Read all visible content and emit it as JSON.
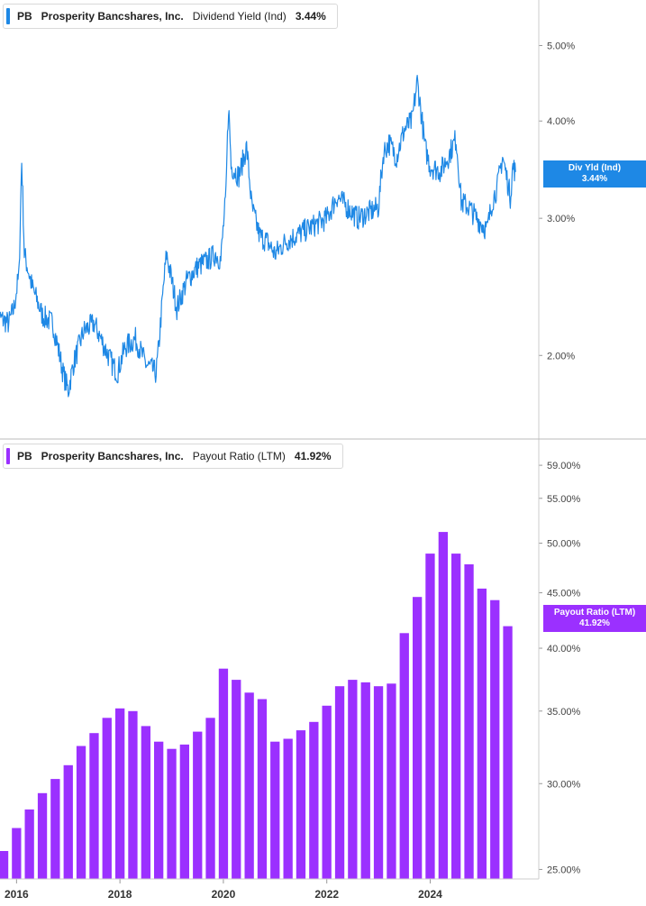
{
  "colors": {
    "dividend_line": "#1e88e5",
    "payout_bar": "#9b30ff",
    "grid": "#e6e6e6",
    "axis": "#cccccc"
  },
  "top_panel": {
    "legend": {
      "ticker": "PB",
      "company": "Prosperity Bancshares, Inc.",
      "metric": "Dividend Yield (Ind)",
      "value": "3.44%"
    },
    "tag": {
      "line1": "Div Yld (Ind)",
      "line2": "3.44%"
    }
  },
  "bottom_panel": {
    "legend": {
      "ticker": "PB",
      "company": "Prosperity Bancshares, Inc.",
      "metric": "Payout Ratio (LTM)",
      "value": "41.92%"
    },
    "tag": {
      "line1": "Payout Ratio (LTM)",
      "line2": "41.92%"
    }
  },
  "chart_data": [
    {
      "type": "line",
      "title": "Prosperity Bancshares, Inc. Dividend Yield (Ind)",
      "scale": "log",
      "ylim": [
        1.6,
        5.6
      ],
      "y_ticks": [
        "5.00%",
        "4.00%",
        "3.00%",
        "2.00%"
      ],
      "y_tick_values": [
        5.0,
        4.0,
        3.0,
        2.0
      ],
      "series": [
        {
          "name": "Dividend Yield (Ind)",
          "x": [
            2015.6,
            2015.85,
            2015.95,
            2016.05,
            2016.1,
            2016.15,
            2016.3,
            2016.5,
            2016.7,
            2016.9,
            2017.0,
            2017.1,
            2017.3,
            2017.5,
            2017.7,
            2017.85,
            2017.95,
            2018.1,
            2018.3,
            2018.5,
            2018.7,
            2018.75,
            2018.9,
            2019.1,
            2019.3,
            2019.5,
            2019.7,
            2019.85,
            2019.95,
            2020.05,
            2020.1,
            2020.15,
            2020.3,
            2020.45,
            2020.55,
            2020.7,
            2020.85,
            2021.0,
            2021.2,
            2021.4,
            2021.6,
            2021.8,
            2022.0,
            2022.2,
            2022.4,
            2022.6,
            2022.8,
            2023.0,
            2023.1,
            2023.2,
            2023.35,
            2023.5,
            2023.65,
            2023.75,
            2023.9,
            2024.0,
            2024.2,
            2024.35,
            2024.5,
            2024.6,
            2024.75,
            2024.9,
            2025.1,
            2025.2,
            2025.3,
            2025.4,
            2025.55,
            2025.6,
            2025.65
          ],
          "values": [
            2.25,
            2.2,
            2.3,
            2.55,
            3.55,
            2.7,
            2.45,
            2.25,
            2.2,
            1.9,
            1.8,
            1.95,
            2.15,
            2.2,
            2.05,
            1.95,
            1.9,
            2.05,
            2.1,
            1.95,
            1.9,
            2.05,
            2.7,
            2.3,
            2.5,
            2.6,
            2.65,
            2.7,
            2.65,
            3.2,
            4.2,
            3.5,
            3.4,
            3.7,
            3.1,
            2.85,
            2.8,
            2.7,
            2.8,
            2.85,
            2.9,
            2.95,
            3.0,
            3.2,
            3.1,
            3.0,
            3.05,
            3.1,
            3.65,
            3.75,
            3.6,
            3.9,
            4.0,
            4.5,
            3.7,
            3.5,
            3.45,
            3.6,
            3.8,
            3.15,
            3.1,
            3.0,
            2.9,
            3.15,
            3.3,
            3.6,
            3.2,
            3.5,
            3.44
          ]
        }
      ]
    },
    {
      "type": "bar",
      "title": "Prosperity Bancshares, Inc. Payout Ratio (LTM)",
      "scale": "log",
      "ylim": [
        24.5,
        60.5
      ],
      "y_ticks": [
        "59.00%",
        "55.00%",
        "50.00%",
        "45.00%",
        "40.00%",
        "35.00%",
        "30.00%",
        "25.00%"
      ],
      "y_tick_values": [
        59.0,
        55.0,
        50.0,
        45.0,
        40.0,
        35.0,
        30.0,
        25.0
      ],
      "x_ticks": [
        "2016",
        "2018",
        "2020",
        "2022",
        "2024"
      ],
      "x_tick_values": [
        2016.0,
        2018.0,
        2020.0,
        2022.0,
        2024.0
      ],
      "xlim": [
        2015.68,
        2026.1
      ],
      "series": [
        {
          "name": "Payout Ratio (LTM)",
          "x": [
            2015.75,
            2016.0,
            2016.25,
            2016.5,
            2016.75,
            2017.0,
            2017.25,
            2017.5,
            2017.75,
            2018.0,
            2018.25,
            2018.5,
            2018.75,
            2019.0,
            2019.25,
            2019.5,
            2019.75,
            2020.0,
            2020.25,
            2020.5,
            2020.75,
            2021.0,
            2021.25,
            2021.5,
            2021.75,
            2022.0,
            2022.25,
            2022.5,
            2022.75,
            2023.0,
            2023.25,
            2023.5,
            2023.75,
            2024.0,
            2024.25,
            2024.5,
            2024.75,
            2025.0,
            2025.25,
            2025.5
          ],
          "values": [
            26.0,
            27.3,
            28.4,
            29.4,
            30.3,
            31.2,
            32.5,
            33.4,
            34.5,
            35.2,
            35.0,
            33.9,
            32.8,
            32.3,
            32.6,
            33.5,
            34.5,
            38.3,
            37.4,
            36.4,
            35.9,
            32.8,
            33.0,
            33.6,
            34.2,
            35.4,
            36.9,
            37.4,
            37.2,
            36.9,
            37.1,
            41.3,
            44.6,
            48.9,
            51.2,
            48.9,
            47.8,
            45.4,
            44.3,
            41.92
          ]
        }
      ]
    }
  ]
}
